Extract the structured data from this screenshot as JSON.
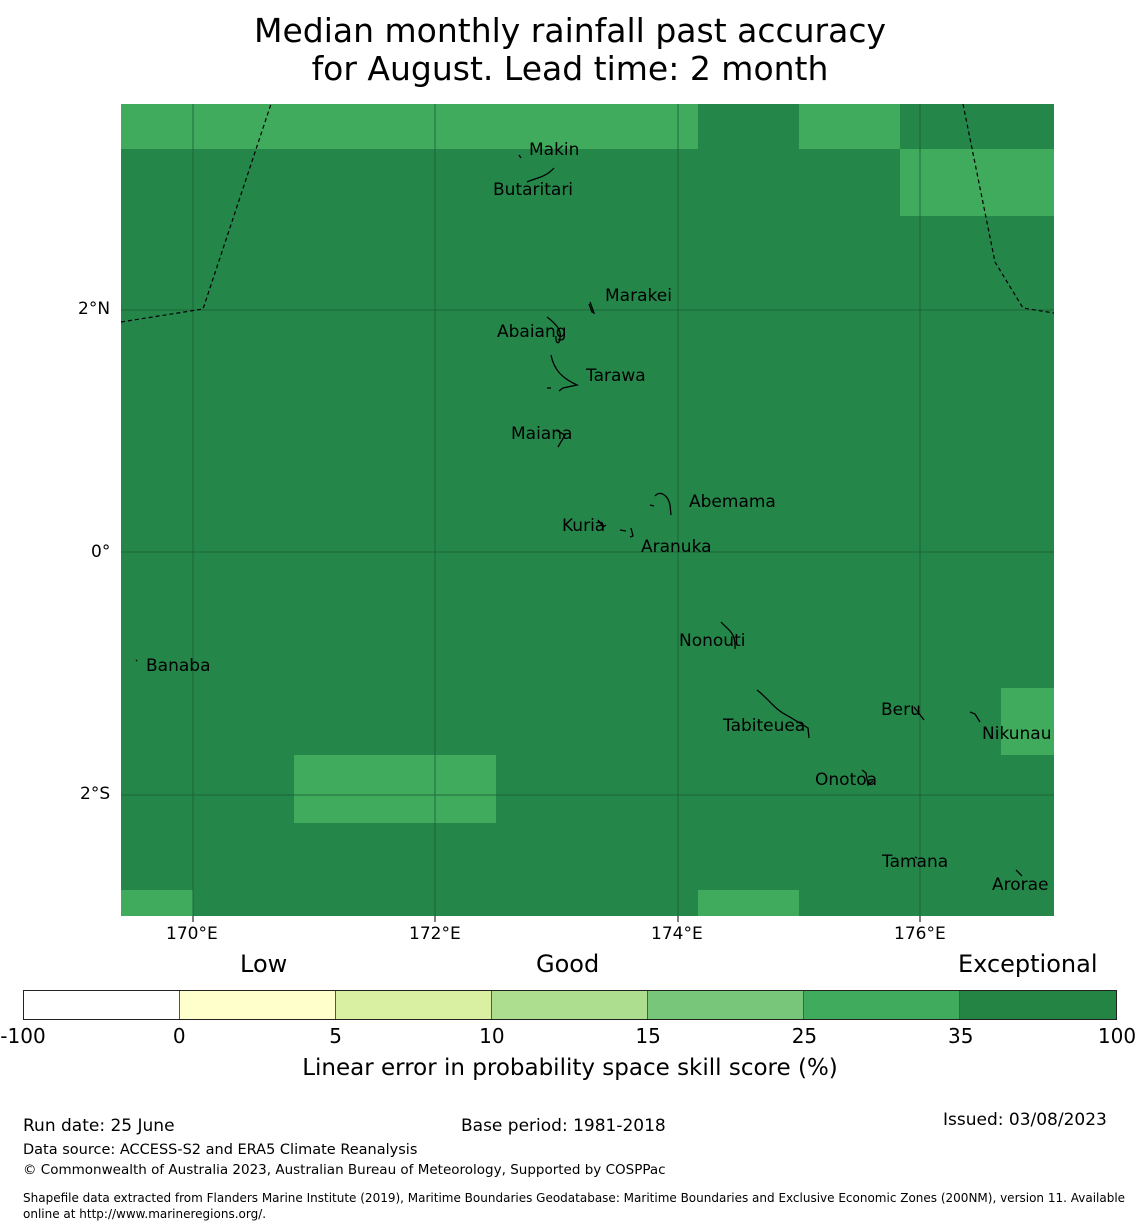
{
  "title": {
    "line1": "Median monthly rainfall past accuracy",
    "line2": "for August. Lead time: 2 month"
  },
  "map": {
    "lon_labels": [
      "170°E",
      "172°E",
      "174°E",
      "176°E"
    ],
    "lat_labels": [
      "2°N",
      "0°",
      "2°S"
    ],
    "islands": [
      "Makin",
      "Butaritari",
      "Marakei",
      "Abaiang",
      "Tarawa",
      "Maiana",
      "Abemama",
      "Kuria",
      "Aranuka",
      "Banaba",
      "Nonouti",
      "Beru",
      "Tabiteuea",
      "Nikunau",
      "Onotoa",
      "Tamana",
      "Arorae"
    ],
    "background_color": "#25864a",
    "highlight_color": "#41ab5d"
  },
  "legend": {
    "categories": [
      "Low",
      "Good",
      "Exceptional"
    ],
    "bounds": [
      "-100",
      "0",
      "5",
      "10",
      "15",
      "25",
      "35",
      "100"
    ],
    "colors": [
      "#ffffff",
      "#ffffcc",
      "#d9f0a3",
      "#addd8e",
      "#78c679",
      "#41ab5d",
      "#238443"
    ],
    "label": "Linear error in probability space skill score (%)"
  },
  "footer": {
    "run_date": "Run date: 25 June",
    "base_period": "Base period: 1981-2018",
    "issued": "Issued: 03/08/2023",
    "data_source": "Data source: ACCESS-S2 and ERA5 Climate Reanalysis",
    "copyright": "© Commonwealth of Australia 2023, Australian Bureau of Meteorology, Supported by COSPPac",
    "shapefile_line1": "Shapefile data extracted from Flanders Marine Institute (2019), Maritime Boundaries Geodatabase: Maritime Boundaries and Exclusive Economic Zones (200NM), version 11. Available",
    "shapefile_line2": "online at http://www.marineregions.org/."
  }
}
